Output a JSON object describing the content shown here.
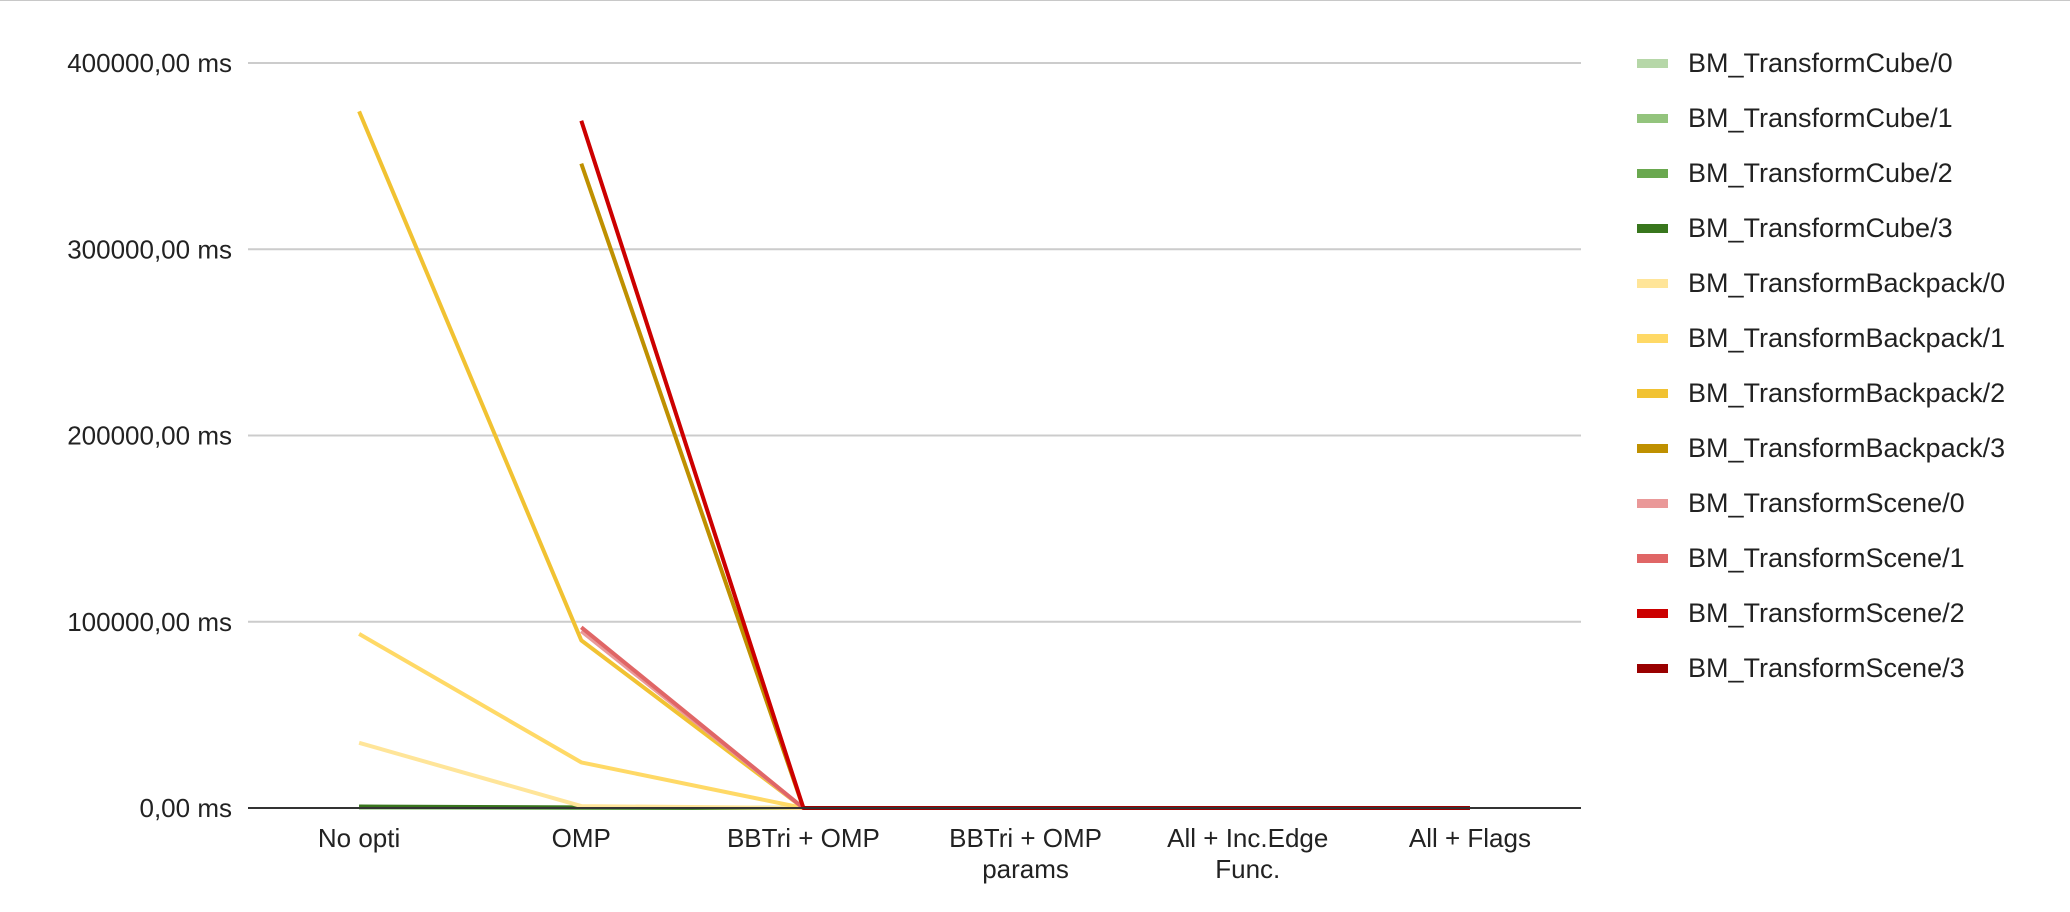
{
  "chart_data": {
    "type": "line",
    "title": "",
    "xlabel": "",
    "ylabel": "",
    "categories": [
      [
        "No opti"
      ],
      [
        "OMP"
      ],
      [
        "BBTri + OMP"
      ],
      [
        "BBTri + OMP",
        "params"
      ],
      [
        "All + Inc.Edge",
        "Func."
      ],
      [
        "All + Flags"
      ]
    ],
    "ylim": [
      0,
      400000
    ],
    "yticks": [
      0,
      100000,
      200000,
      300000,
      400000
    ],
    "ytick_labels": [
      "0,00 ms",
      "100000,00 ms",
      "200000,00 ms",
      "300000,00 ms",
      "400000,00 ms"
    ],
    "grid": "horizontal",
    "legend_position": "right",
    "series": [
      {
        "name": "BM_TransformCube/0",
        "color": "#b6d7a8",
        "values": [
          200,
          100,
          0,
          0,
          0,
          0
        ]
      },
      {
        "name": "BM_TransformCube/1",
        "color": "#93c47d",
        "values": [
          300,
          150,
          0,
          0,
          0,
          0
        ]
      },
      {
        "name": "BM_TransformCube/2",
        "color": "#6aa84f",
        "values": [
          500,
          200,
          0,
          0,
          0,
          0
        ]
      },
      {
        "name": "BM_TransformCube/3",
        "color": "#38761d",
        "values": [
          800,
          300,
          0,
          0,
          0,
          0
        ]
      },
      {
        "name": "BM_TransformBackpack/0",
        "color": "#ffe599",
        "values": [
          35000,
          1000,
          0,
          0,
          0,
          0
        ]
      },
      {
        "name": "BM_TransformBackpack/1",
        "color": "#ffd966",
        "values": [
          93500,
          24500,
          0,
          0,
          0,
          0
        ]
      },
      {
        "name": "BM_TransformBackpack/2",
        "color": "#f1c232",
        "values": [
          374000,
          90000,
          0,
          0,
          0,
          0
        ]
      },
      {
        "name": "BM_TransformBackpack/3",
        "color": "#bf9000",
        "values": [
          null,
          346000,
          0,
          0,
          0,
          0
        ]
      },
      {
        "name": "BM_TransformScene/0",
        "color": "#ea9999",
        "values": [
          null,
          95000,
          0,
          0,
          0,
          0
        ]
      },
      {
        "name": "BM_TransformScene/1",
        "color": "#e06666",
        "values": [
          null,
          97000,
          0,
          0,
          0,
          0
        ]
      },
      {
        "name": "BM_TransformScene/2",
        "color": "#cc0000",
        "values": [
          null,
          369000,
          0,
          0,
          0,
          0
        ]
      },
      {
        "name": "BM_TransformScene/3",
        "color": "#990000",
        "values": [
          null,
          null,
          0,
          0,
          0,
          0
        ]
      }
    ]
  }
}
